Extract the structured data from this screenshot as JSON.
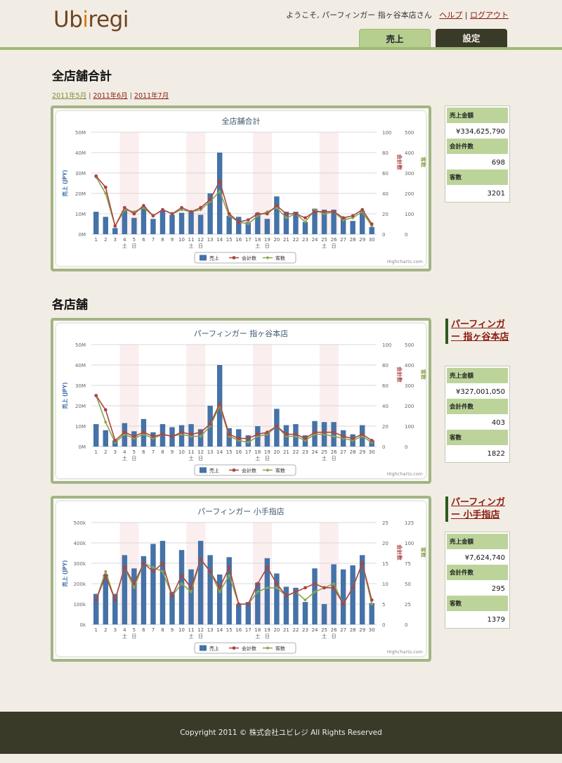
{
  "header": {
    "logo_main": "Ub",
    "logo_accent": "i",
    "logo_rest": "regi",
    "welcome_text": "ようこそ, パーフィンガー 指ヶ谷本店さん",
    "help_link": "ヘルプ",
    "separator": "|",
    "logout_link": "ログアウト",
    "tabs": [
      {
        "label": "売上",
        "active": true
      },
      {
        "label": "設定",
        "active": false
      }
    ]
  },
  "summary": {
    "title": "全店舗合計",
    "months": [
      "2011年5月",
      "2011年6月",
      "2011年7月"
    ],
    "month_sep": "|"
  },
  "stores_section": {
    "title": "各店舗"
  },
  "colors": {
    "sales": "#4572a7",
    "transactions": "#aa4643",
    "customers": "#89a54e",
    "weekend_band": "#fbeeee",
    "frame": "#a3b486",
    "stat_label_bg": "#bcd49a",
    "footer_bg": "#3a3a28"
  },
  "charts": [
    {
      "id": "total",
      "store_link": "",
      "stats": [
        {
          "label": "売上金額",
          "value": "¥334,625,790"
        },
        {
          "label": "会計件数",
          "value": "698"
        },
        {
          "label": "客数",
          "value": "3201"
        }
      ],
      "chart_data": {
        "type": "bar",
        "title": "全店舗合計",
        "categories": [
          "1",
          "2",
          "3",
          "4",
          "5",
          "6",
          "7",
          "8",
          "9",
          "10",
          "11",
          "12",
          "13",
          "14",
          "15",
          "16",
          "17",
          "18",
          "19",
          "20",
          "21",
          "22",
          "23",
          "24",
          "25",
          "26",
          "27",
          "28",
          "29",
          "30"
        ],
        "weekday_labels": {
          "4": "土",
          "5": "日"
        },
        "weekday_marks": [
          {
            "day": "4",
            "text": "土"
          },
          {
            "day": "5",
            "text": "日"
          },
          {
            "day": "11",
            "text": "土"
          },
          {
            "day": "12",
            "text": "日"
          },
          {
            "day": "18",
            "text": "土"
          },
          {
            "day": "19",
            "text": "日"
          },
          {
            "day": "25",
            "text": "土"
          },
          {
            "day": "26",
            "text": "日"
          }
        ],
        "weekend_bands": [
          [
            "4",
            "5"
          ],
          [
            "11",
            "12"
          ],
          [
            "18",
            "19"
          ],
          [
            "25",
            "26"
          ]
        ],
        "y_left": {
          "label": "売上 (JPY)",
          "ticks": [
            "0M",
            "10M",
            "20M",
            "30M",
            "40M",
            "50M"
          ],
          "max": 50
        },
        "y_mid": {
          "label": "会計数",
          "ticks": [
            "0",
            "20",
            "40",
            "60",
            "80",
            "100"
          ],
          "max": 100
        },
        "y_right": {
          "label": "客数",
          "ticks": [
            "0",
            "100",
            "200",
            "300",
            "400",
            "500"
          ],
          "max": 500
        },
        "series": [
          {
            "name": "売上",
            "values": [
              11,
              8.5,
              3,
              11.5,
              8,
              13.5,
              7.5,
              11.5,
              9.5,
              10.5,
              11,
              9.5,
              20,
              40,
              9,
              8.5,
              6,
              10.5,
              7.5,
              18.5,
              11,
              11,
              6,
              12.5,
              12,
              12,
              8.5,
              6.5,
              11.5,
              3.5
            ]
          },
          {
            "name": "会計数",
            "values": [
              57,
              46,
              8,
              26,
              20,
              28,
              18,
              24,
              20,
              26,
              22,
              26,
              34,
              52,
              20,
              12,
              14,
              20,
              20,
              28,
              20,
              20,
              16,
              22,
              22,
              22,
              16,
              18,
              24,
              10
            ]
          },
          {
            "name": "客数",
            "values": [
              280,
              200,
              40,
              120,
              110,
              130,
              90,
              120,
              100,
              120,
              110,
              120,
              160,
              210,
              90,
              60,
              50,
              90,
              110,
              130,
              80,
              100,
              60,
              120,
              100,
              110,
              70,
              80,
              110,
              40
            ]
          }
        ],
        "legend": [
          "売上",
          "会計数",
          "客数"
        ],
        "credits": "Highcharts.com"
      }
    },
    {
      "id": "store1",
      "store_link": "パーフィンガー 指ヶ谷本店",
      "stats": [
        {
          "label": "売上金額",
          "value": "¥327,001,050"
        },
        {
          "label": "会計件数",
          "value": "403"
        },
        {
          "label": "客数",
          "value": "1822"
        }
      ],
      "chart_data": {
        "type": "bar",
        "title": "パーフィンガー 指ヶ谷本店",
        "categories": [
          "1",
          "2",
          "3",
          "4",
          "5",
          "6",
          "7",
          "8",
          "9",
          "10",
          "11",
          "12",
          "13",
          "14",
          "15",
          "16",
          "17",
          "18",
          "19",
          "20",
          "21",
          "22",
          "23",
          "24",
          "25",
          "26",
          "27",
          "28",
          "29",
          "30"
        ],
        "weekday_marks": [
          {
            "day": "4",
            "text": "土"
          },
          {
            "day": "5",
            "text": "日"
          },
          {
            "day": "11",
            "text": "土"
          },
          {
            "day": "12",
            "text": "日"
          },
          {
            "day": "18",
            "text": "土"
          },
          {
            "day": "19",
            "text": "日"
          },
          {
            "day": "25",
            "text": "土"
          },
          {
            "day": "26",
            "text": "日"
          }
        ],
        "weekend_bands": [
          [
            "4",
            "5"
          ],
          [
            "11",
            "12"
          ],
          [
            "18",
            "19"
          ],
          [
            "25",
            "26"
          ]
        ],
        "y_left": {
          "label": "売上 (JPY)",
          "ticks": [
            "0M",
            "10M",
            "20M",
            "30M",
            "40M",
            "50M"
          ],
          "max": 50
        },
        "y_mid": {
          "label": "会計数",
          "ticks": [
            "0",
            "20",
            "40",
            "60",
            "80",
            "100"
          ],
          "max": 100
        },
        "y_right": {
          "label": "客数",
          "ticks": [
            "0",
            "100",
            "200",
            "300",
            "400",
            "500"
          ],
          "max": 500
        },
        "series": [
          {
            "name": "売上",
            "values": [
              11,
              8,
              3,
              11.5,
              7.5,
              13.5,
              7,
              11,
              9.5,
              10.5,
              11,
              8.5,
              20,
              40,
              9,
              8.5,
              5.5,
              10,
              7,
              18.5,
              10.5,
              11,
              5.5,
              12.5,
              12,
              12,
              8,
              6,
              10.5,
              3
            ]
          },
          {
            "name": "会計数",
            "values": [
              50,
              36,
              6,
              14,
              10,
              14,
              10,
              12,
              10,
              14,
              12,
              14,
              22,
              42,
              12,
              8,
              8,
              12,
              14,
              20,
              12,
              12,
              8,
              14,
              14,
              14,
              10,
              8,
              12,
              6
            ]
          },
          {
            "name": "客数",
            "values": [
              250,
              120,
              20,
              60,
              40,
              60,
              40,
              60,
              50,
              60,
              50,
              50,
              100,
              200,
              50,
              30,
              20,
              50,
              60,
              100,
              50,
              50,
              30,
              60,
              60,
              50,
              40,
              30,
              50,
              20
            ]
          }
        ],
        "legend": [
          "売上",
          "会計数",
          "客数"
        ],
        "credits": "Highcharts.com"
      }
    },
    {
      "id": "store2",
      "store_link": "パーフィンガー 小手指店",
      "stats": [
        {
          "label": "売上金額",
          "value": "¥7,624,740"
        },
        {
          "label": "会計件数",
          "value": "295"
        },
        {
          "label": "客数",
          "value": "1379"
        }
      ],
      "chart_data": {
        "type": "bar",
        "title": "パーフィンガー 小手指店",
        "categories": [
          "1",
          "2",
          "3",
          "4",
          "5",
          "6",
          "7",
          "8",
          "9",
          "10",
          "11",
          "12",
          "13",
          "14",
          "15",
          "16",
          "17",
          "18",
          "19",
          "20",
          "21",
          "22",
          "23",
          "24",
          "25",
          "26",
          "27",
          "28",
          "29",
          "30"
        ],
        "weekday_marks": [
          {
            "day": "4",
            "text": "土"
          },
          {
            "day": "5",
            "text": "日"
          },
          {
            "day": "11",
            "text": "土"
          },
          {
            "day": "12",
            "text": "日"
          },
          {
            "day": "18",
            "text": "土"
          },
          {
            "day": "19",
            "text": "日"
          },
          {
            "day": "25",
            "text": "土"
          },
          {
            "day": "26",
            "text": "日"
          }
        ],
        "weekend_bands": [
          [
            "4",
            "5"
          ],
          [
            "11",
            "12"
          ],
          [
            "18",
            "19"
          ],
          [
            "25",
            "26"
          ]
        ],
        "y_left": {
          "label": "売上 (JPY)",
          "ticks": [
            "0k",
            "100k",
            "200k",
            "300k",
            "400k",
            "500k"
          ],
          "max": 500
        },
        "y_mid": {
          "label": "会計数",
          "ticks": [
            "0",
            "5",
            "10",
            "15",
            "20",
            "25"
          ],
          "max": 25
        },
        "y_right": {
          "label": "客数",
          "ticks": [
            "0",
            "25",
            "50",
            "75",
            "100",
            "125"
          ],
          "max": 125
        },
        "series": [
          {
            "name": "売上",
            "values": [
              150,
              245,
              150,
              340,
              275,
              335,
              395,
              410,
              160,
              365,
              270,
              410,
              340,
              245,
              330,
              100,
              110,
              205,
              325,
              250,
              185,
              180,
              110,
              275,
              100,
              295,
              270,
              290,
              340,
              105
            ]
          },
          {
            "name": "会計数",
            "values": [
              6,
              12,
              6,
              14,
              10,
              15,
              13,
              15,
              7,
              12,
              9,
              16,
              13,
              9,
              14,
              5,
              5,
              10,
              14,
              10,
              7,
              8,
              9,
              10,
              9,
              9,
              5,
              9,
              15,
              6
            ]
          },
          {
            "name": "客数",
            "values": [
              30,
              65,
              30,
              70,
              45,
              75,
              70,
              65,
              35,
              50,
              40,
              80,
              65,
              40,
              60,
              25,
              25,
              40,
              45,
              45,
              35,
              40,
              30,
              40,
              45,
              50,
              25,
              45,
              75,
              25
            ]
          }
        ],
        "legend": [
          "売上",
          "会計数",
          "客数"
        ],
        "credits": "Highcharts.com"
      }
    }
  ],
  "footer": {
    "text": "Copyright 2011 © 株式会社ユビレジ All Rights Reserved"
  }
}
